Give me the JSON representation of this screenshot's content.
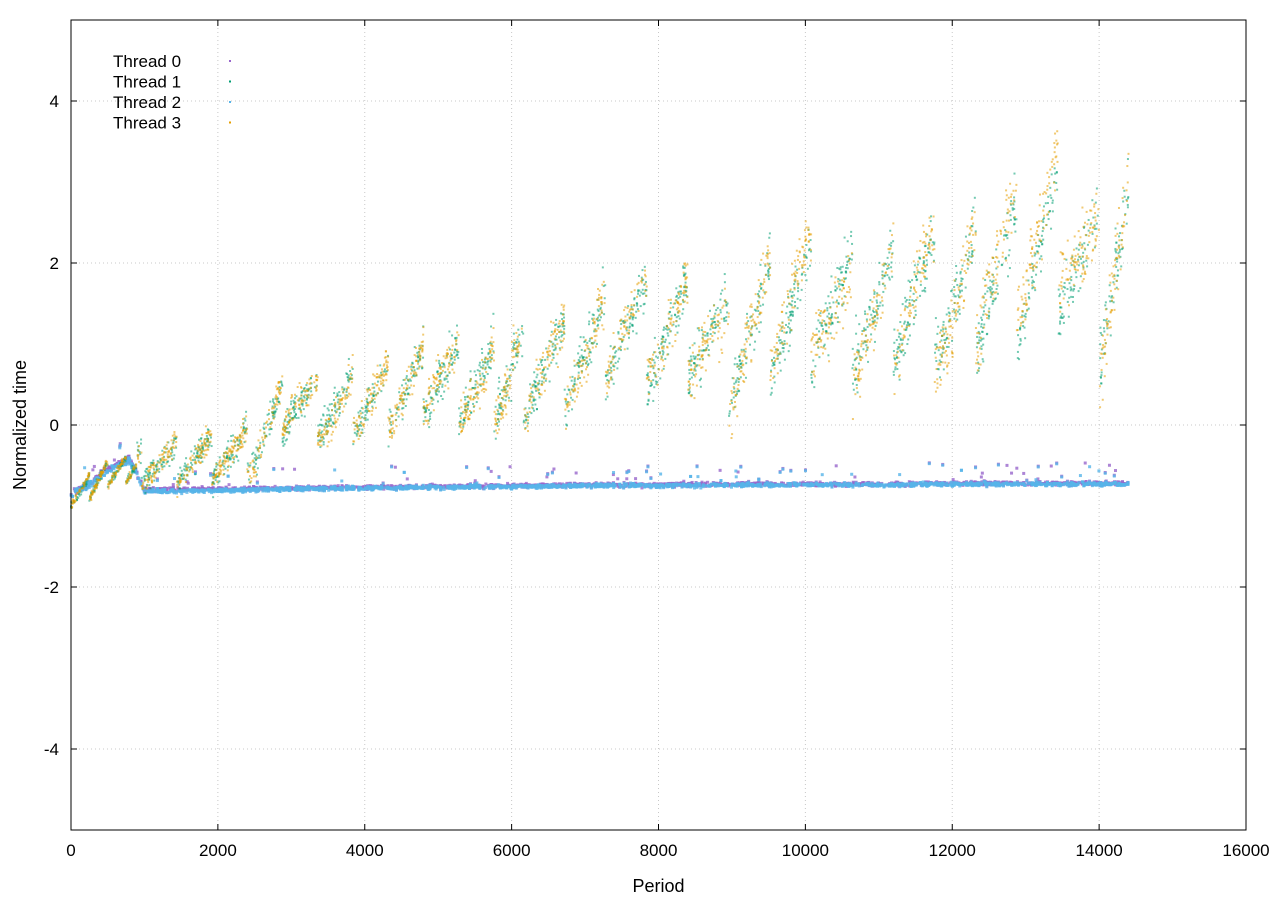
{
  "chart_data": {
    "type": "scatter",
    "title": "",
    "xlabel": "Period",
    "ylabel": "Normalized time",
    "xlim": [
      0,
      16000
    ],
    "ylim": [
      -5,
      5
    ],
    "xticks": [
      0,
      2000,
      4000,
      6000,
      8000,
      10000,
      12000,
      14000,
      16000
    ],
    "yticks": [
      -4,
      -2,
      0,
      2,
      4
    ],
    "grid": true,
    "legend": "top-left",
    "series": [
      {
        "name": "Thread 0",
        "color": "#9966cc",
        "pattern": "flat-baseline",
        "points": [
          [
            0,
            -0.84
          ],
          [
            100,
            -0.8
          ],
          [
            200,
            -0.75
          ],
          [
            300,
            -0.7
          ],
          [
            400,
            -0.6
          ],
          [
            500,
            -0.55
          ],
          [
            600,
            -0.5
          ],
          [
            700,
            -0.45
          ],
          [
            800,
            -0.42
          ],
          [
            1000,
            -0.8
          ],
          [
            2000,
            -0.79
          ],
          [
            3000,
            -0.78
          ],
          [
            4000,
            -0.77
          ],
          [
            5000,
            -0.76
          ],
          [
            6000,
            -0.75
          ],
          [
            7000,
            -0.74
          ],
          [
            8000,
            -0.74
          ],
          [
            9000,
            -0.73
          ],
          [
            10000,
            -0.73
          ],
          [
            11000,
            -0.73
          ],
          [
            12000,
            -0.72
          ],
          [
            13000,
            -0.72
          ],
          [
            14000,
            -0.72
          ],
          [
            14400,
            -0.72
          ]
        ]
      },
      {
        "name": "Thread 1",
        "color": "#009e73",
        "pattern": "sawtooth",
        "points": [
          [
            0,
            -0.85
          ],
          [
            200,
            -0.8
          ],
          [
            500,
            -0.6
          ],
          [
            1000,
            -0.5
          ],
          [
            1500,
            -0.45
          ],
          [
            2000,
            -0.4
          ],
          [
            2500,
            -0.3
          ],
          [
            3000,
            0.3
          ],
          [
            3500,
            0.2
          ],
          [
            4000,
            0.3
          ],
          [
            4500,
            0.4
          ],
          [
            5000,
            0.6
          ],
          [
            5500,
            0.5
          ],
          [
            6000,
            0.6
          ],
          [
            6500,
            0.7
          ],
          [
            7000,
            0.9
          ],
          [
            7500,
            1.2
          ],
          [
            8000,
            1.1
          ],
          [
            8500,
            1.2
          ],
          [
            9000,
            0.9
          ],
          [
            9500,
            1.3
          ],
          [
            10000,
            1.5
          ],
          [
            10500,
            1.4
          ],
          [
            11000,
            1.4
          ],
          [
            11500,
            1.6
          ],
          [
            12000,
            1.5
          ],
          [
            12500,
            1.8
          ],
          [
            13000,
            1.9
          ],
          [
            13500,
            2.2
          ],
          [
            14000,
            1.7
          ],
          [
            14400,
            2.4
          ]
        ]
      },
      {
        "name": "Thread 2",
        "color": "#56b4e9",
        "pattern": "flat-baseline",
        "points": [
          [
            0,
            -0.85
          ],
          [
            100,
            -0.8
          ],
          [
            200,
            -0.76
          ],
          [
            300,
            -0.72
          ],
          [
            400,
            -0.62
          ],
          [
            500,
            -0.57
          ],
          [
            600,
            -0.52
          ],
          [
            700,
            -0.47
          ],
          [
            800,
            -0.44
          ],
          [
            1000,
            -0.82
          ],
          [
            2000,
            -0.81
          ],
          [
            3000,
            -0.79
          ],
          [
            4000,
            -0.78
          ],
          [
            5000,
            -0.77
          ],
          [
            6000,
            -0.76
          ],
          [
            7000,
            -0.75
          ],
          [
            8000,
            -0.75
          ],
          [
            9000,
            -0.74
          ],
          [
            10000,
            -0.74
          ],
          [
            11000,
            -0.74
          ],
          [
            12000,
            -0.73
          ],
          [
            13000,
            -0.73
          ],
          [
            14000,
            -0.73
          ],
          [
            14400,
            -0.73
          ]
        ]
      },
      {
        "name": "Thread 3",
        "color": "#e69f00",
        "pattern": "sawtooth",
        "points": [
          [
            0,
            -0.85
          ],
          [
            200,
            -0.8
          ],
          [
            500,
            -0.6
          ],
          [
            1000,
            -0.5
          ],
          [
            1500,
            -0.45
          ],
          [
            2000,
            -0.4
          ],
          [
            2500,
            -0.3
          ],
          [
            3000,
            0.4
          ],
          [
            3500,
            0.1
          ],
          [
            4000,
            0.3
          ],
          [
            4500,
            0.4
          ],
          [
            5000,
            0.7
          ],
          [
            5500,
            0.4
          ],
          [
            6000,
            0.6
          ],
          [
            6500,
            0.7
          ],
          [
            7000,
            0.8
          ],
          [
            7500,
            1.3
          ],
          [
            8000,
            1.1
          ],
          [
            8500,
            1.2
          ],
          [
            9000,
            0.8
          ],
          [
            9500,
            1.4
          ],
          [
            10000,
            1.7
          ],
          [
            10500,
            1.2
          ],
          [
            11000,
            1.3
          ],
          [
            11500,
            1.7
          ],
          [
            12000,
            1.3
          ],
          [
            12500,
            2.0
          ],
          [
            13000,
            2.2
          ],
          [
            13500,
            2.6
          ],
          [
            14000,
            1.5
          ],
          [
            14400,
            2.6
          ]
        ]
      }
    ]
  }
}
